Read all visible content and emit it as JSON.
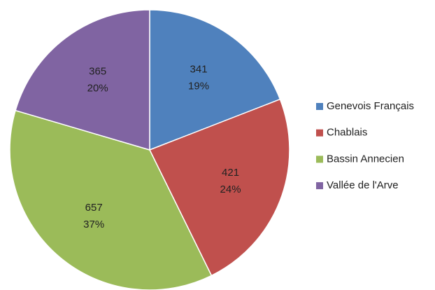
{
  "chart_data": {
    "type": "pie",
    "categories": [
      "Genevois Français",
      "Chablais",
      "Bassin Annecien",
      "Vallée de l'Arve"
    ],
    "values": [
      341,
      421,
      657,
      365
    ],
    "percent_labels": [
      "19%",
      "24%",
      "37%",
      "20%"
    ],
    "colors": [
      "#4f81bd",
      "#c0504d",
      "#9bbb59",
      "#8064a2"
    ],
    "legend": "right"
  }
}
